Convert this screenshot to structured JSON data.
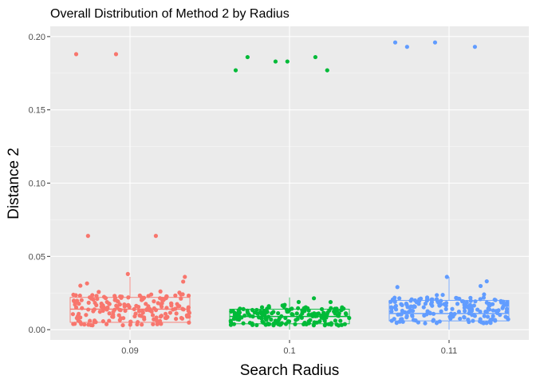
{
  "chart_data": {
    "type": "box+jitter",
    "title": "Overall Distribution of Method 2 by Radius",
    "xlabel": "Search Radius",
    "ylabel": "Distance 2",
    "categories": [
      "0.09",
      "0.1",
      "0.11"
    ],
    "ylim": [
      -0.007,
      0.207
    ],
    "yticks": [
      0.0,
      0.05,
      0.1,
      0.15,
      0.2
    ],
    "ytick_labels": [
      "0.00",
      "0.05",
      "0.10",
      "0.15",
      "0.20"
    ],
    "grid": true,
    "legend": "none",
    "series": [
      {
        "category": "0.09",
        "color": "#F8766D",
        "box": {
          "min": 0.0,
          "q1": 0.005,
          "median": 0.014,
          "q3": 0.022,
          "max": 0.036
        },
        "outliers": [
          0.188,
          0.188,
          0.064,
          0.064,
          0.038
        ],
        "jitter_count": 190,
        "jitter_seed": 11
      },
      {
        "category": "0.1",
        "color": "#00BA38",
        "box": {
          "min": 0.0,
          "q1": 0.004,
          "median": 0.009,
          "q3": 0.014,
          "max": 0.022
        },
        "outliers": [
          0.177,
          0.183,
          0.186,
          0.186,
          0.183,
          0.177
        ],
        "jitter_count": 170,
        "jitter_seed": 23
      },
      {
        "category": "0.11",
        "color": "#619CFF",
        "box": {
          "min": 0.0,
          "q1": 0.006,
          "median": 0.011,
          "q3": 0.02,
          "max": 0.036
        },
        "outliers": [
          0.196,
          0.196,
          0.193,
          0.193,
          0.036,
          0.033
        ],
        "jitter_count": 185,
        "jitter_seed": 37
      }
    ]
  }
}
